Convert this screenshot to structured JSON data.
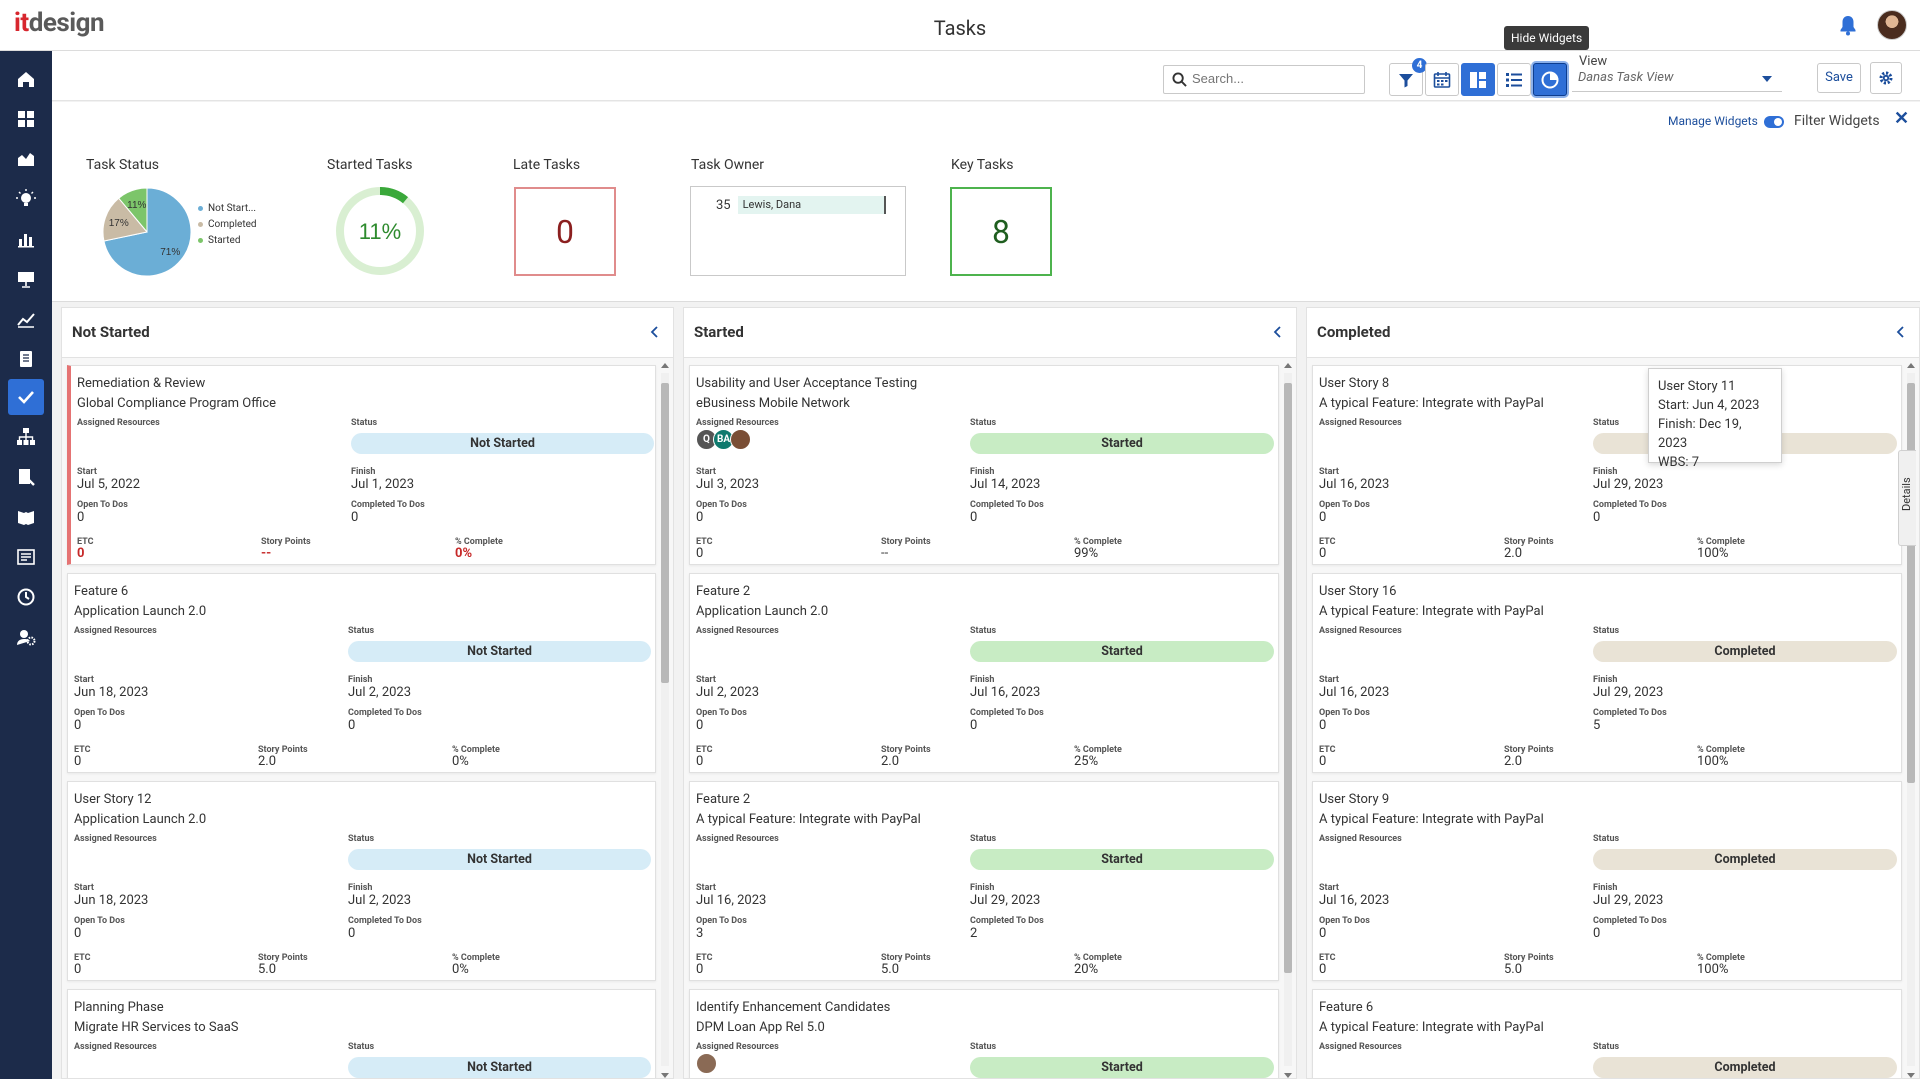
{
  "app": {
    "logo_prefix": "it",
    "logo_rest": "design",
    "title": "Tasks"
  },
  "toolbar": {
    "search_placeholder": "Search...",
    "filter_badge": "4",
    "hide_widgets_tooltip": "Hide Widgets",
    "view_label": "View",
    "view_value": "Danas Task View",
    "save_label": "Save"
  },
  "widgets": {
    "manage_label": "Manage Widgets",
    "filter_widgets_label": "Filter Widgets",
    "close_symbol": "✕",
    "task_status": {
      "title": "Task Status",
      "slices": [
        {
          "label": "Not Start...",
          "value": 71,
          "color": "#6baed6",
          "text": "71%"
        },
        {
          "label": "Completed",
          "value": 17,
          "color": "#c9bba5",
          "text": "17%"
        },
        {
          "label": "Started",
          "value": 11,
          "color": "#7cc56a",
          "text": "11%"
        }
      ]
    },
    "started_tasks": {
      "title": "Started Tasks",
      "value": 11,
      "text": "11%",
      "color": "#3aa83a",
      "track": "#d9efd2"
    },
    "late_tasks": {
      "title": "Late Tasks",
      "value": "0"
    },
    "task_owner": {
      "title": "Task Owner",
      "count": "35",
      "name": "Lewis, Dana"
    },
    "key_tasks": {
      "title": "Key Tasks",
      "value": "8"
    }
  },
  "labels": {
    "assigned": "Assigned Resources",
    "status": "Status",
    "start": "Start",
    "finish": "Finish",
    "open_todos": "Open To Dos",
    "completed_todos": "Completed To Dos",
    "etc": "ETC",
    "story_points": "Story Points",
    "pct_complete": "% Complete"
  },
  "columns": [
    {
      "title": "Not Started",
      "cards": [
        {
          "l1": "Remediation & Review",
          "l2": "Global Compliance Program Office",
          "status": "Not Started",
          "start": "Jul 5, 2022",
          "finish": "Jul 1, 2023",
          "open": "0",
          "done": "0",
          "etc": "0",
          "sp": "--",
          "pct": "0%",
          "late": true
        },
        {
          "l1": "Feature 6",
          "l2": "Application Launch 2.0",
          "status": "Not Started",
          "start": "Jun 18, 2023",
          "finish": "Jul 2, 2023",
          "open": "0",
          "done": "0",
          "etc": "0",
          "sp": "2.0",
          "pct": "0%"
        },
        {
          "l1": "User Story 12",
          "l2": "Application Launch 2.0",
          "status": "Not Started",
          "start": "Jun 18, 2023",
          "finish": "Jul 2, 2023",
          "open": "0",
          "done": "0",
          "etc": "0",
          "sp": "5.0",
          "pct": "0%"
        },
        {
          "l1": "Planning Phase",
          "l2": "Migrate HR Services to SaaS",
          "status": "Not Started",
          "start": "",
          "finish": "",
          "open": "",
          "done": "",
          "etc": "",
          "sp": "",
          "pct": ""
        }
      ]
    },
    {
      "title": "Started",
      "cards": [
        {
          "l1": "Usability and User Acceptance Testing",
          "l2": "eBusiness Mobile Network",
          "status": "Started",
          "start": "Jul 3, 2023",
          "finish": "Jul 14, 2023",
          "open": "0",
          "done": "0",
          "etc": "0",
          "sp": "--",
          "pct": "99%",
          "avatars": [
            {
              "t": "Q",
              "c": "#555"
            },
            {
              "t": "BA",
              "c": "#0f7a6e"
            },
            {
              "t": "",
              "c": "#7a4e35"
            }
          ]
        },
        {
          "l1": "Feature 2",
          "l2": "Application Launch 2.0",
          "status": "Started",
          "start": "Jul 2, 2023",
          "finish": "Jul 16, 2023",
          "open": "0",
          "done": "0",
          "etc": "0",
          "sp": "2.0",
          "pct": "25%"
        },
        {
          "l1": "Feature 2",
          "l2": "A typical Feature: Integrate with PayPal",
          "status": "Started",
          "start": "Jul 16, 2023",
          "finish": "Jul 29, 2023",
          "open": "3",
          "done": "2",
          "etc": "0",
          "sp": "5.0",
          "pct": "20%"
        },
        {
          "l1": "Identify Enhancement Candidates",
          "l2": "DPM Loan App Rel 5.0",
          "status": "Started",
          "start": "",
          "finish": "",
          "open": "",
          "done": "",
          "etc": "",
          "sp": "",
          "pct": "",
          "avatars": [
            {
              "t": "",
              "c": "#8a6a55"
            }
          ]
        }
      ]
    },
    {
      "title": "Completed",
      "cards": [
        {
          "l1": "User Story 8",
          "l2": "A typical Feature: Integrate with PayPal",
          "status": "Completed",
          "start": "Jul 16, 2023",
          "finish": "Jul 29, 2023",
          "open": "0",
          "done": "0",
          "etc": "0",
          "sp": "2.0",
          "pct": "100%"
        },
        {
          "l1": "User Story 16",
          "l2": "A typical Feature: Integrate with PayPal",
          "status": "Completed",
          "start": "Jul 16, 2023",
          "finish": "Jul 29, 2023",
          "open": "0",
          "done": "5",
          "etc": "0",
          "sp": "2.0",
          "pct": "100%"
        },
        {
          "l1": "User Story 9",
          "l2": "A typical Feature: Integrate with PayPal",
          "status": "Completed",
          "start": "Jul 16, 2023",
          "finish": "Jul 29, 2023",
          "open": "0",
          "done": "0",
          "etc": "0",
          "sp": "5.0",
          "pct": "100%"
        },
        {
          "l1": "Feature 6",
          "l2": "A typical Feature: Integrate with PayPal",
          "status": "Completed",
          "start": "",
          "finish": "",
          "open": "",
          "done": "",
          "etc": "",
          "sp": "",
          "pct": ""
        }
      ]
    }
  ],
  "card_tooltip": {
    "l1": "User Story 11",
    "l2": "Start: Jun 4, 2023",
    "l3": "Finish: Dec 19, 2023",
    "l4": "WBS: 7"
  },
  "details_tab": "Details",
  "sidebar_icons": [
    "home-icon",
    "dashboard-icon",
    "portfolio-icon",
    "ideas-icon",
    "reports-icon",
    "presentation-icon",
    "analytics-icon",
    "documents-icon",
    "tasks-icon",
    "org-chart-icon",
    "timesheet-icon",
    "library-icon",
    "forms-icon",
    "history-icon",
    "admin-icon"
  ]
}
